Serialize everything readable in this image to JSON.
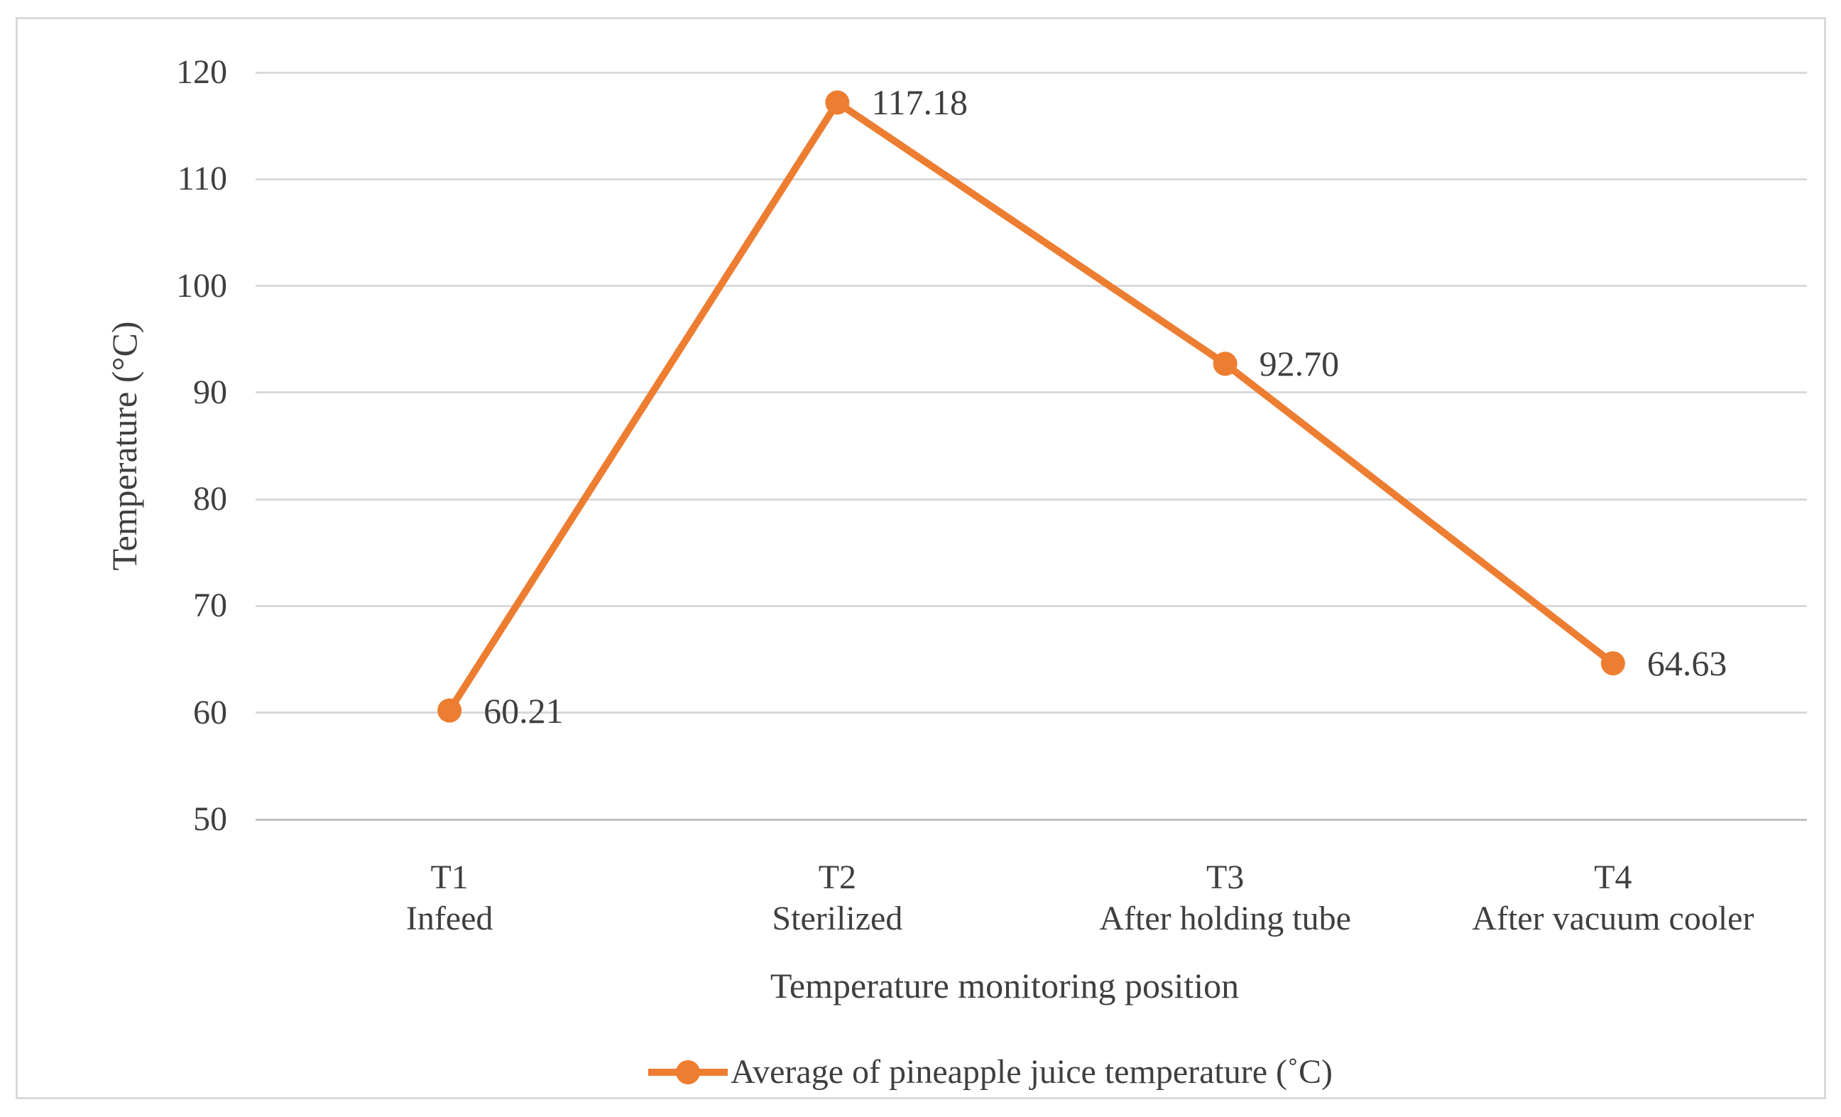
{
  "chart_data": {
    "type": "line",
    "title": "",
    "xlabel": "Temperature monitoring position",
    "ylabel": "Temperature (°C)",
    "categories": [
      {
        "code": "T1",
        "desc": "Infeed"
      },
      {
        "code": "T2",
        "desc": "Sterilized"
      },
      {
        "code": "T3",
        "desc": "After holding tube"
      },
      {
        "code": "T4",
        "desc": "After vacuum cooler"
      }
    ],
    "series": [
      {
        "name": "Average of pineapple juice temperature (˚C)",
        "values": [
          60.21,
          117.18,
          92.7,
          64.63
        ],
        "labels": [
          "60.21",
          "117.18",
          "92.70",
          "64.63"
        ]
      }
    ],
    "ylim": [
      50,
      120
    ],
    "yticks": [
      50,
      60,
      70,
      80,
      90,
      100,
      110,
      120
    ],
    "ytick_labels": [
      "50",
      "60",
      "70",
      "80",
      "90",
      "100",
      "110",
      "120"
    ],
    "grid": true,
    "legend_position": "bottom",
    "marker": "circle"
  },
  "style": {
    "accent_color": "#ED7D31",
    "gridline_color": "#D9D9D9",
    "axis_line_color": "#BFBFBF",
    "text_color": "#3F3F3F",
    "border_color": "#D9D9D9",
    "background_color": "#FFFFFF"
  }
}
